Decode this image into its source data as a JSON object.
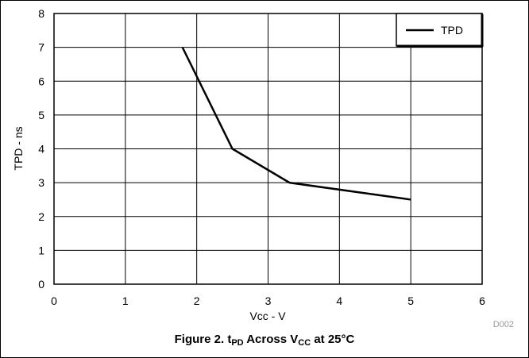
{
  "chart_data": {
    "type": "line",
    "xlabel": "Vcc - V",
    "ylabel": "TPD - ns",
    "xlim": [
      0,
      6
    ],
    "ylim": [
      0,
      8
    ],
    "x_ticks": [
      "0",
      "1",
      "2",
      "3",
      "4",
      "5",
      "6"
    ],
    "y_ticks": [
      "0",
      "1",
      "2",
      "3",
      "4",
      "5",
      "6",
      "7",
      "8"
    ],
    "grid": true,
    "legend_position": "top-right",
    "series": [
      {
        "name": "TPD",
        "color": "#000000",
        "x": [
          1.8,
          2.5,
          3.3,
          5.0
        ],
        "y": [
          7.0,
          4.0,
          3.0,
          2.5
        ]
      }
    ],
    "figure_id": "D002"
  },
  "caption": {
    "prefix": "Figure 2. t",
    "sub1": "PD",
    "middle": " Across V",
    "sub2": "CC",
    "suffix": " at 25°C"
  }
}
